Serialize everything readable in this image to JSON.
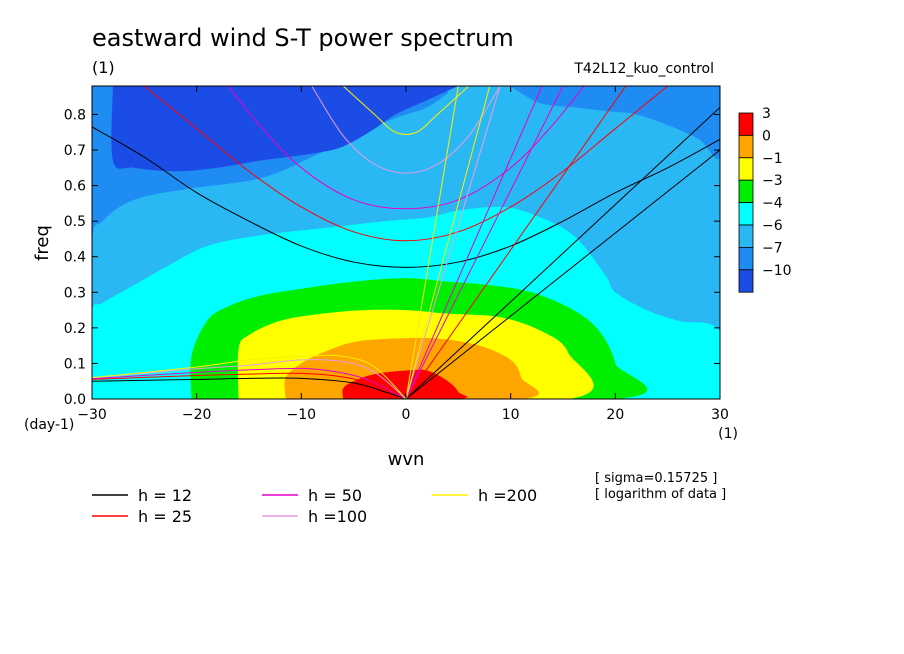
{
  "title": "eastward wind S-T power spectrum",
  "subtitle_left": "(1)",
  "subtitle_right": "T42L12_kuo_control",
  "ylabel": "freq",
  "ylabel_unit": "(day-1)",
  "xlabel": "wvn",
  "xlabel_unit": "(1)",
  "note_sigma": "[ sigma=0.15725 ]",
  "note_log": "[ logarithm of data ]",
  "colors": {
    "c_lt_m10": "#1c4ce6",
    "c_m10_m7": "#1e8cf2",
    "c_m7_m6": "#2ab8f5",
    "c_m6_m4": "#00ffff",
    "c_m4_m3": "#00ee00",
    "c_m3_m1": "#ffff00",
    "c_m1_0": "#ffa500",
    "c_0_3": "#ff0000",
    "h12": "#000000",
    "h25": "#ff0000",
    "h50": "#e600cc",
    "h100": "#e79de0",
    "h200": "#ffee00"
  },
  "colorbar": {
    "labels": [
      "3",
      "0",
      "−1",
      "−3",
      "−4",
      "−6",
      "−7",
      "−10"
    ]
  },
  "legend": [
    {
      "label": "h = 12",
      "color": "#000000"
    },
    {
      "label": "h = 25",
      "color": "#ff0000"
    },
    {
      "label": "h = 50",
      "color": "#e600cc"
    },
    {
      "label": "h =100",
      "color": "#e79de0"
    },
    {
      "label": "h =200",
      "color": "#ffee00"
    }
  ],
  "chart_data": {
    "type": "heatmap",
    "title": "eastward wind S-T power spectrum",
    "xlabel": "wvn",
    "ylabel": "freq",
    "xlim": [
      -30,
      30
    ],
    "ylim": [
      0,
      0.88
    ],
    "xticks": [
      -30,
      -20,
      -10,
      0,
      10,
      20,
      30
    ],
    "yticks": [
      0.0,
      0.1,
      0.2,
      0.3,
      0.4,
      0.5,
      0.6,
      0.7,
      0.8
    ],
    "xtick_labels": [
      "−30",
      "−20",
      "−10",
      "0",
      "10",
      "20",
      "30"
    ],
    "ytick_labels": [
      "0.0",
      "0.1",
      "0.2",
      "0.3",
      "0.4",
      "0.5",
      "0.6",
      "0.7",
      "0.8"
    ],
    "contour_levels": [
      -10,
      -7,
      -6,
      -4,
      -3,
      -1,
      0,
      3
    ],
    "regions": [
      {
        "range": "-7 to -6",
        "color_key": "c_m7_m6",
        "points": [
          [
            -30,
            0
          ],
          [
            -30,
            0.43
          ],
          [
            -29,
            0.5
          ],
          [
            -26,
            0.56
          ],
          [
            -21,
            0.59
          ],
          [
            -14,
            0.62
          ],
          [
            -9,
            0.68
          ],
          [
            -5,
            0.74
          ],
          [
            -1,
            0.79
          ],
          [
            2,
            0.82
          ],
          [
            4,
            0.86
          ],
          [
            5,
            0.88
          ],
          [
            30,
            0.88
          ],
          [
            30,
            0
          ],
          [
            -30,
            0
          ]
        ]
      },
      {
        "range": "-6 to -4",
        "color_key": "c_m6_m4",
        "points": [
          [
            -30,
            0
          ],
          [
            -30,
            0.24
          ],
          [
            -29,
            0.27
          ],
          [
            -26,
            0.32
          ],
          [
            -23,
            0.37
          ],
          [
            -19,
            0.43
          ],
          [
            -14,
            0.46
          ],
          [
            -8,
            0.48
          ],
          [
            -2,
            0.5
          ],
          [
            2,
            0.51
          ],
          [
            5,
            0.53
          ],
          [
            9,
            0.54
          ],
          [
            12,
            0.52
          ],
          [
            16,
            0.46
          ],
          [
            19,
            0.35
          ],
          [
            20,
            0.3
          ],
          [
            23,
            0.25
          ],
          [
            26,
            0.22
          ],
          [
            30,
            0.19
          ],
          [
            30,
            0
          ],
          [
            -30,
            0
          ]
        ]
      },
      {
        "range": "-4 to -3",
        "color_key": "c_m4_m3",
        "points": [
          [
            -20.5,
            0
          ],
          [
            -20.5,
            0.12
          ],
          [
            -19,
            0.22
          ],
          [
            -17,
            0.26
          ],
          [
            -14,
            0.29
          ],
          [
            -10,
            0.31
          ],
          [
            -5,
            0.33
          ],
          [
            0,
            0.34
          ],
          [
            4,
            0.33
          ],
          [
            8,
            0.32
          ],
          [
            12,
            0.3
          ],
          [
            16,
            0.25
          ],
          [
            18.5,
            0.19
          ],
          [
            20,
            0.1
          ],
          [
            20,
            0
          ],
          [
            -20.5,
            0
          ]
        ]
      },
      {
        "range": "-3 to -1",
        "color_key": "c_m3_m1",
        "points": [
          [
            -16,
            0
          ],
          [
            -16,
            0.14
          ],
          [
            -15,
            0.18
          ],
          [
            -12,
            0.22
          ],
          [
            -8,
            0.24
          ],
          [
            -4,
            0.25
          ],
          [
            0,
            0.25
          ],
          [
            4,
            0.24
          ],
          [
            9,
            0.23
          ],
          [
            13,
            0.19
          ],
          [
            15.5,
            0.13
          ],
          [
            15.5,
            0
          ],
          [
            -16,
            0
          ]
        ]
      },
      {
        "range": "-1 to 0",
        "color_key": "c_m1_0",
        "points": [
          [
            -11.5,
            0
          ],
          [
            -11.5,
            0.06
          ],
          [
            -10,
            0.1
          ],
          [
            -8,
            0.13
          ],
          [
            -5,
            0.16
          ],
          [
            -1,
            0.17
          ],
          [
            3,
            0.17
          ],
          [
            7,
            0.15
          ],
          [
            10,
            0.11
          ],
          [
            11,
            0.06
          ],
          [
            11,
            0
          ],
          [
            -11.5,
            0
          ]
        ]
      },
      {
        "range": "0 to 3",
        "color_key": "c_0_3",
        "points": [
          [
            -6,
            0
          ],
          [
            -6,
            0.03
          ],
          [
            -5,
            0.05
          ],
          [
            -3,
            0.07
          ],
          [
            0,
            0.08
          ],
          [
            2,
            0.08
          ],
          [
            4,
            0.05
          ],
          [
            5,
            0.02
          ],
          [
            5,
            0
          ],
          [
            -6,
            0
          ]
        ]
      },
      {
        "range": "-10 to -7",
        "color_key": "c_m10_m7",
        "points": [
          [
            -30,
            0.62
          ],
          [
            -27,
            0.66
          ],
          [
            -24,
            0.69
          ],
          [
            -21,
            0.71
          ],
          [
            -17,
            0.73
          ],
          [
            -13,
            0.75
          ],
          [
            -9,
            0.78
          ],
          [
            -5,
            0.83
          ],
          [
            -3,
            0.86
          ],
          [
            -1,
            0.88
          ],
          [
            -30,
            0.88
          ]
        ]
      },
      {
        "range": "-10 to -7",
        "color_key": "c_m10_m7",
        "points": [
          [
            30,
            0.88
          ],
          [
            30,
            0.68
          ],
          [
            28,
            0.73
          ],
          [
            25,
            0.77
          ],
          [
            22,
            0.8
          ],
          [
            19,
            0.81
          ],
          [
            16,
            0.82
          ],
          [
            13,
            0.83
          ],
          [
            11,
            0.86
          ],
          [
            10,
            0.88
          ]
        ]
      },
      {
        "range": "< -10",
        "color_key": "c_lt_m10",
        "points": [
          [
            5,
            0.88
          ],
          [
            2,
            0.84
          ],
          [
            -1,
            0.8
          ],
          [
            -3,
            0.76
          ],
          [
            -6,
            0.71
          ],
          [
            -9,
            0.69
          ],
          [
            -14,
            0.67
          ],
          [
            -18,
            0.65
          ],
          [
            -22,
            0.64
          ],
          [
            -26,
            0.65
          ],
          [
            -28,
            0.67
          ],
          [
            -28,
            0.88
          ]
        ]
      }
    ],
    "dispersion_curves": [
      {
        "name": "h = 12",
        "color_key": "h12",
        "points": [
          [
            -30,
            0.765
          ],
          [
            -25,
            0.68
          ],
          [
            -20,
            0.58
          ],
          [
            -15,
            0.5
          ],
          [
            -10,
            0.43
          ],
          [
            -5,
            0.385
          ],
          [
            0,
            0.37
          ],
          [
            5,
            0.385
          ],
          [
            10,
            0.43
          ],
          [
            15,
            0.5
          ],
          [
            20,
            0.58
          ],
          [
            25,
            0.65
          ],
          [
            30,
            0.73
          ]
        ]
      },
      {
        "name": "h = 12",
        "color_key": "h12",
        "points": [
          [
            -30,
            0.05
          ],
          [
            -20,
            0.055
          ],
          [
            -15,
            0.058
          ],
          [
            -10,
            0.058
          ],
          [
            -5,
            0.045
          ],
          [
            -2,
            0.02
          ],
          [
            0,
            0
          ]
        ]
      },
      {
        "name": "h = 12",
        "color_key": "h12",
        "points": [
          [
            0,
            0
          ],
          [
            30,
            0.7
          ]
        ]
      },
      {
        "name": "h = 12",
        "color_key": "h12",
        "points": [
          [
            0,
            0
          ],
          [
            30,
            0.82
          ]
        ]
      },
      {
        "name": "h = 25",
        "color_key": "h25",
        "points": [
          [
            -25,
            0.88
          ],
          [
            -20,
            0.76
          ],
          [
            -15,
            0.64
          ],
          [
            -10,
            0.54
          ],
          [
            -5,
            0.47
          ],
          [
            0,
            0.445
          ],
          [
            5,
            0.47
          ],
          [
            10,
            0.54
          ],
          [
            15,
            0.64
          ],
          [
            20,
            0.76
          ],
          [
            25,
            0.88
          ]
        ]
      },
      {
        "name": "h = 25",
        "color_key": "h25",
        "points": [
          [
            -30,
            0.055
          ],
          [
            -20,
            0.066
          ],
          [
            -15,
            0.07
          ],
          [
            -10,
            0.072
          ],
          [
            -6,
            0.062
          ],
          [
            -3,
            0.04
          ],
          [
            0,
            0
          ]
        ]
      },
      {
        "name": "h = 25",
        "color_key": "h25",
        "points": [
          [
            0,
            0
          ],
          [
            21,
            0.88
          ]
        ]
      },
      {
        "name": "h = 50",
        "color_key": "h50",
        "points": [
          [
            -17,
            0.88
          ],
          [
            -14,
            0.77
          ],
          [
            -10,
            0.65
          ],
          [
            -5,
            0.56
          ],
          [
            0,
            0.535
          ],
          [
            5,
            0.56
          ],
          [
            10,
            0.65
          ],
          [
            14,
            0.77
          ],
          [
            17,
            0.88
          ]
        ]
      },
      {
        "name": "h = 50",
        "color_key": "h50",
        "points": [
          [
            -30,
            0.057
          ],
          [
            -20,
            0.075
          ],
          [
            -15,
            0.082
          ],
          [
            -10,
            0.086
          ],
          [
            -7,
            0.078
          ],
          [
            -4,
            0.058
          ],
          [
            -2,
            0.03
          ],
          [
            0,
            0
          ]
        ]
      },
      {
        "name": "h = 50",
        "color_key": "h50",
        "points": [
          [
            0,
            0
          ],
          [
            13,
            0.88
          ]
        ]
      },
      {
        "name": "h = 50",
        "color_key": "h50",
        "points": [
          [
            0,
            0
          ],
          [
            15,
            0.88
          ]
        ]
      },
      {
        "name": "h =100",
        "color_key": "h100",
        "points": [
          [
            -9,
            0.88
          ],
          [
            -6,
            0.74
          ],
          [
            -3,
            0.66
          ],
          [
            0,
            0.635
          ],
          [
            3,
            0.66
          ],
          [
            6,
            0.74
          ],
          [
            9,
            0.88
          ]
        ]
      },
      {
        "name": "h =100",
        "color_key": "h100",
        "points": [
          [
            -30,
            0.06
          ],
          [
            -20,
            0.085
          ],
          [
            -15,
            0.095
          ],
          [
            -10,
            0.11
          ],
          [
            -6,
            0.105
          ],
          [
            -3,
            0.075
          ],
          [
            0,
            0
          ]
        ]
      },
      {
        "name": "h =100",
        "color_key": "h100",
        "points": [
          [
            0,
            0
          ],
          [
            9,
            0.88
          ]
        ]
      },
      {
        "name": "h =200",
        "color_key": "h200",
        "points": [
          [
            -6,
            0.88
          ],
          [
            -3,
            0.8
          ],
          [
            -1,
            0.75
          ],
          [
            1,
            0.75
          ],
          [
            3,
            0.8
          ],
          [
            6,
            0.88
          ]
        ]
      },
      {
        "name": "h =200",
        "color_key": "h200",
        "points": [
          [
            -30,
            0.06
          ],
          [
            -20,
            0.09
          ],
          [
            -15,
            0.11
          ],
          [
            -10,
            0.12
          ],
          [
            -6,
            0.12
          ],
          [
            -3,
            0.09
          ],
          [
            0,
            0
          ]
        ]
      },
      {
        "name": "h =200",
        "color_key": "h200",
        "points": [
          [
            0,
            0
          ],
          [
            5,
            0.88
          ]
        ]
      },
      {
        "name": "h =200",
        "color_key": "h200",
        "points": [
          [
            0,
            0
          ],
          [
            8,
            0.88
          ]
        ]
      }
    ]
  }
}
